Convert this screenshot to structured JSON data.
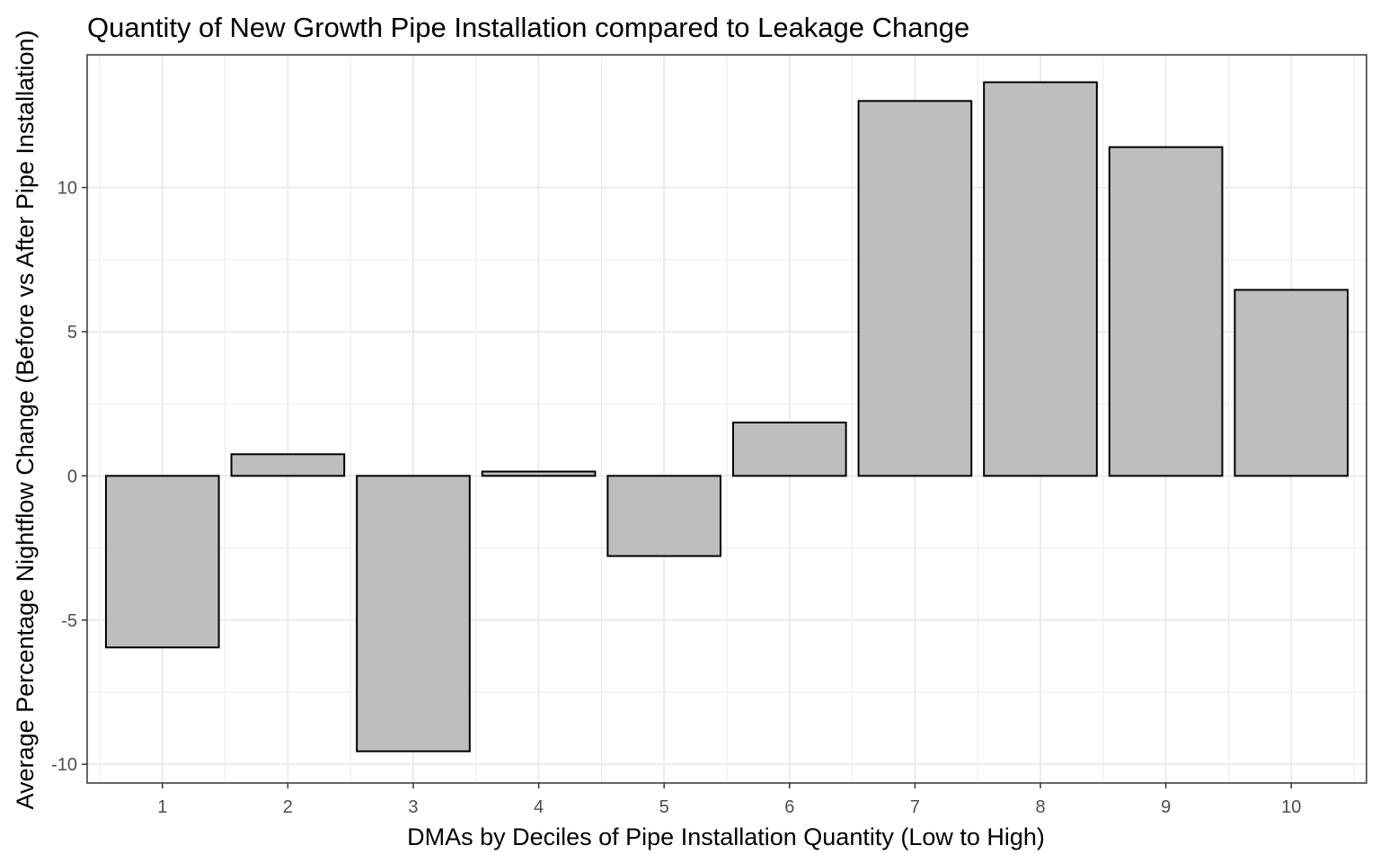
{
  "chart_data": {
    "type": "bar",
    "title": "Quantity of New Growth Pipe Installation compared to Leakage Change",
    "xlabel": "DMAs by Deciles of Pipe Installation Quantity (Low to High)",
    "ylabel": "Average Percentage Nightflow Change (Before vs After Pipe Installation)",
    "categories": [
      "1",
      "2",
      "3",
      "4",
      "5",
      "6",
      "7",
      "8",
      "9",
      "10"
    ],
    "values": [
      -5.95,
      0.75,
      -9.55,
      0.15,
      -2.78,
      1.85,
      13.0,
      13.65,
      11.4,
      6.45
    ],
    "yticks": [
      -10,
      -5,
      0,
      5,
      10
    ],
    "ytick_labels": [
      "-10",
      "-5",
      "0",
      "5",
      "10"
    ],
    "ylim": [
      -10.65,
      14.6
    ],
    "grid": true,
    "colors": {
      "bar_fill": "#bebebe",
      "bar_stroke": "#000000",
      "grid": "#ebebeb",
      "panel_border": "#333333"
    }
  }
}
